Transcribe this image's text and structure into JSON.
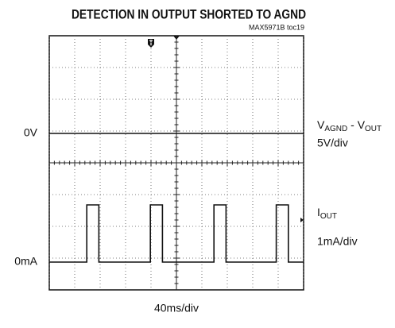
{
  "chart_data": {
    "type": "scope",
    "title": "DETECTION IN OUTPUT SHORTED TO AGND",
    "subtitle": "MAX5971B toc19",
    "x_label": "40ms/div",
    "xlim": [
      0,
      400
    ],
    "xticks": [
      0,
      40,
      80,
      120,
      160,
      200,
      240,
      280,
      320,
      360,
      400
    ],
    "grid": true,
    "color": "#111111",
    "series": [
      {
        "label": [
          {
            "text": "V",
            "sub": false
          },
          {
            "text": "AGND",
            "sub": true
          },
          {
            "text": " - V",
            "sub": false
          },
          {
            "text": "OUT",
            "sub": true
          }
        ],
        "scale": "5V/div",
        "ylim": [
          -24.625,
          15.375
        ],
        "yticks": [
          {
            "value": 0,
            "label": "0V"
          }
        ],
        "x": [
          0,
          400
        ],
        "values": [
          0,
          0
        ]
      },
      {
        "label": [
          {
            "text": "I",
            "sub": false
          },
          {
            "text": "OUT",
            "sub": true
          }
        ],
        "scale": "1mA/div",
        "ylim": [
          -0.875,
          7.125
        ],
        "yticks": [
          {
            "value": 0,
            "label": "0mA"
          }
        ],
        "x": [
          0,
          59,
          59,
          78,
          78,
          159,
          159,
          178,
          178,
          259,
          259,
          278,
          278,
          357,
          357,
          376,
          376,
          400
        ],
        "values": [
          0,
          0,
          1.8,
          1.8,
          0,
          0,
          1.8,
          1.8,
          0,
          0,
          1.8,
          1.8,
          0,
          0,
          1.8,
          1.8,
          0,
          0
        ]
      }
    ]
  }
}
